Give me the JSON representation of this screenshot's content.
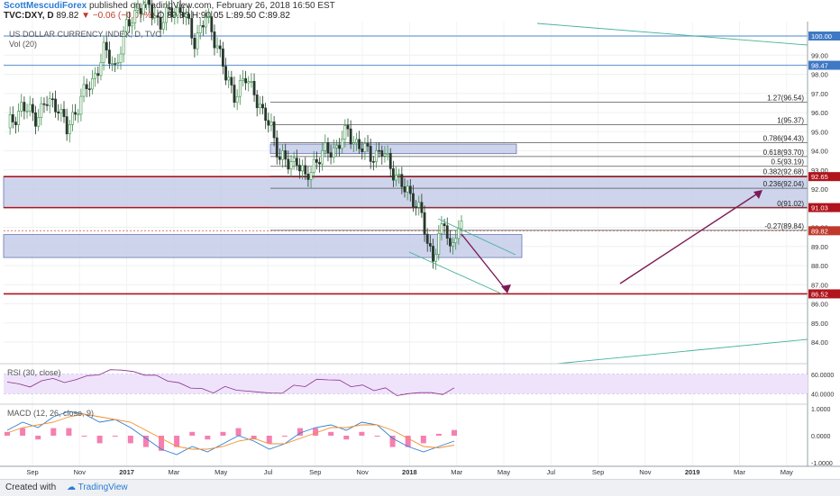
{
  "header": {
    "author": "ScottMescudiForex",
    "published": "published on TradingView.com, February 26, 2018 16:50 EST",
    "symbol": "TVC:DXY, D",
    "last": "89.82",
    "change": "▼ −0.06 (−0.07%)",
    "ohlc": "O:89.88 H:90.05 L:89.50 C:89.82"
  },
  "footer": {
    "created_with": "Created with",
    "brand": "TradingView"
  },
  "chart_data": {
    "type": "candlestick",
    "title": "US DOLLAR CURRENCY INDEX, D, TVC",
    "volume_label": "Vol (20)",
    "y_ticks": [
      "100.00",
      "99.00",
      "98.00",
      "97.00",
      "96.00",
      "95.00",
      "94.00",
      "93.00",
      "92.00",
      "91.00",
      "90.00",
      "89.00",
      "88.00",
      "87.00",
      "86.00",
      "85.00",
      "84.00"
    ],
    "ylim": [
      83.3,
      100.9
    ],
    "x_ticks": [
      "Sep",
      "Nov",
      "2017",
      "Mar",
      "May",
      "Jul",
      "Sep",
      "Nov",
      "2018",
      "Mar",
      "May",
      "Jul",
      "Sep",
      "Nov",
      "2019",
      "Mar",
      "May"
    ],
    "price_path": [
      [
        0,
        95.2
      ],
      [
        5,
        96.3
      ],
      [
        10,
        95.8
      ],
      [
        14,
        96.5
      ],
      [
        18,
        96.4
      ],
      [
        21,
        95.0
      ],
      [
        26,
        96.8
      ],
      [
        30,
        97.6
      ],
      [
        34,
        99.2
      ],
      [
        38,
        98.4
      ],
      [
        42,
        100.4
      ],
      [
        46,
        101.5
      ],
      [
        50,
        101.6
      ],
      [
        54,
        100.6
      ],
      [
        58,
        101.4
      ],
      [
        62,
        101.2
      ],
      [
        66,
        99.8
      ],
      [
        70,
        100.9
      ],
      [
        74,
        99.6
      ],
      [
        77,
        97.8
      ],
      [
        80,
        97.0
      ],
      [
        84,
        97.7
      ],
      [
        87,
        97.2
      ],
      [
        90,
        95.8
      ],
      [
        93,
        95.3
      ],
      [
        96,
        93.6
      ],
      [
        99,
        93.3
      ],
      [
        102,
        93.6
      ],
      [
        105,
        92.4
      ],
      [
        108,
        93.4
      ],
      [
        112,
        93.9
      ],
      [
        116,
        94.2
      ],
      [
        120,
        95.0
      ],
      [
        124,
        94.2
      ],
      [
        128,
        93.8
      ],
      [
        132,
        93.9
      ],
      [
        136,
        93.0
      ],
      [
        140,
        91.9
      ],
      [
        143,
        91.6
      ],
      [
        146,
        90.6
      ],
      [
        148,
        89.0
      ],
      [
        150,
        88.6
      ],
      [
        152,
        89.4
      ],
      [
        154,
        90.2
      ],
      [
        156,
        88.8
      ],
      [
        158,
        89.9
      ],
      [
        160,
        89.82
      ]
    ],
    "horizontal_levels": [
      {
        "value": 100.0,
        "label": "100.00"
      },
      {
        "value": 98.47,
        "label": "98.47"
      },
      {
        "value": 92.65,
        "label": "92.65"
      },
      {
        "value": 91.03,
        "label": "91.03"
      },
      {
        "value": 86.52,
        "label": "86.52"
      },
      {
        "value": 89.82,
        "label": "89.82"
      }
    ],
    "fibonacci": [
      {
        "label": "1.27(96.54)",
        "value": 96.54
      },
      {
        "label": "1(95.37)",
        "value": 95.37
      },
      {
        "label": "0.786(94.43)",
        "value": 94.43
      },
      {
        "label": "0.618(93.70)",
        "value": 93.7
      },
      {
        "label": "0.5(93.19)",
        "value": 93.19
      },
      {
        "label": "0.382(92.68)",
        "value": 92.68
      },
      {
        "label": "0.236(92.04)",
        "value": 92.04
      },
      {
        "label": "0(91.02)",
        "value": 91.02
      },
      {
        "label": "-0.27(89.84)",
        "value": 89.84
      }
    ],
    "rsi": {
      "label": "RSI (30, close)",
      "ticks": [
        "60.0000",
        "40.0000"
      ],
      "values": [
        52,
        50,
        47,
        53,
        56,
        51,
        55,
        58,
        60,
        64,
        65,
        62,
        60,
        58,
        54,
        50,
        47,
        44,
        42,
        46,
        45,
        41,
        43,
        39,
        42,
        47,
        49,
        53,
        56,
        52,
        49,
        47,
        45,
        44,
        40,
        38,
        43,
        39,
        41,
        44
      ]
    },
    "macd": {
      "label": "MACD (12, 26, close, 9)",
      "ticks": [
        "1.0000",
        "0.0000",
        "-1.0000"
      ],
      "macd": [
        0.2,
        0.5,
        0.3,
        0.7,
        0.9,
        0.8,
        0.5,
        0.6,
        0.3,
        -0.1,
        -0.5,
        -0.7,
        -0.4,
        -0.6,
        -0.3,
        0.0,
        -0.2,
        -0.5,
        -0.3,
        0.1,
        0.3,
        0.4,
        0.2,
        0.5,
        0.4,
        -0.1,
        -0.4,
        -0.6,
        -0.4,
        -0.2
      ],
      "signal": [
        0.1,
        0.3,
        0.4,
        0.5,
        0.7,
        0.8,
        0.7,
        0.6,
        0.5,
        0.2,
        -0.1,
        -0.4,
        -0.5,
        -0.5,
        -0.4,
        -0.2,
        -0.1,
        -0.3,
        -0.3,
        -0.1,
        0.1,
        0.3,
        0.3,
        0.4,
        0.4,
        0.2,
        -0.1,
        -0.4,
        -0.45,
        -0.35
      ]
    },
    "colors": {
      "bull": "#3c8f4a",
      "bear": "#26382b",
      "zone_fill": "#c5cde9",
      "zone_stroke": "#4f5fa8",
      "support": "#b0141d",
      "blue_line": "#6f9fd8",
      "trend_green": "#45b29a",
      "arrow": "#7d1a55",
      "rsi_fill": "#efe3fb",
      "rsi_line": "#8a2f8a",
      "macd_line": "#2e7fd4",
      "signal_line": "#f28e2b",
      "hist": "#f25f9e"
    }
  }
}
